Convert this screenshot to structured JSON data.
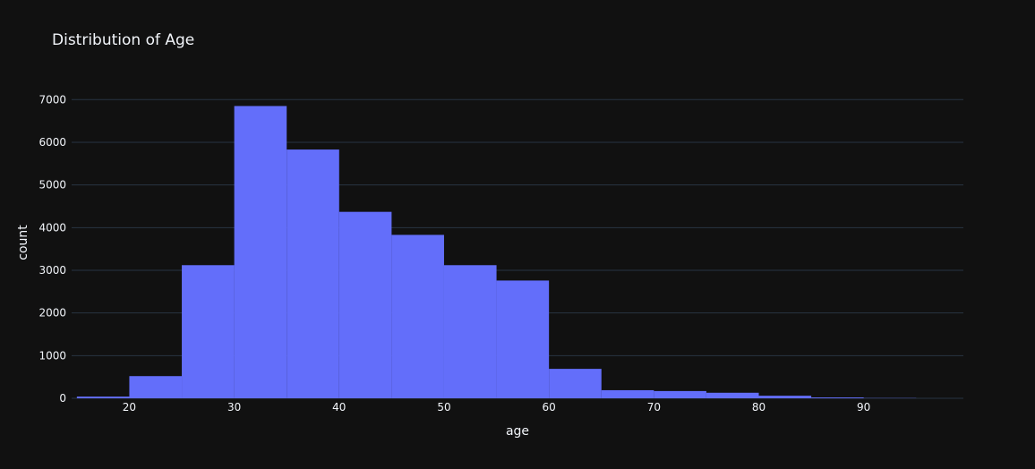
{
  "chart_data": {
    "type": "bar",
    "title": "Distribution of Age",
    "xlabel": "age",
    "ylabel": "count",
    "bin_width": 5,
    "bins": [
      {
        "start": 15,
        "end": 20,
        "count": 40
      },
      {
        "start": 20,
        "end": 25,
        "count": 520
      },
      {
        "start": 25,
        "end": 30,
        "count": 3120
      },
      {
        "start": 30,
        "end": 35,
        "count": 6850
      },
      {
        "start": 35,
        "end": 40,
        "count": 5830
      },
      {
        "start": 40,
        "end": 45,
        "count": 4370
      },
      {
        "start": 45,
        "end": 50,
        "count": 3830
      },
      {
        "start": 50,
        "end": 55,
        "count": 3120
      },
      {
        "start": 55,
        "end": 60,
        "count": 2760
      },
      {
        "start": 60,
        "end": 65,
        "count": 690
      },
      {
        "start": 65,
        "end": 70,
        "count": 190
      },
      {
        "start": 70,
        "end": 75,
        "count": 170
      },
      {
        "start": 75,
        "end": 80,
        "count": 130
      },
      {
        "start": 80,
        "end": 85,
        "count": 60
      },
      {
        "start": 85,
        "end": 90,
        "count": 20
      },
      {
        "start": 90,
        "end": 95,
        "count": 5
      }
    ],
    "xlim": [
      14.5,
      99.5
    ],
    "ylim": [
      0,
      7300
    ],
    "x_ticks": [
      20,
      30,
      40,
      50,
      60,
      70,
      80,
      90
    ],
    "y_ticks": [
      0,
      1000,
      2000,
      3000,
      4000,
      5000,
      6000,
      7000
    ],
    "grid": true,
    "colors": {
      "bar": "#636efa",
      "background": "#111111",
      "grid": "#283442",
      "text": "#f2f5fa"
    }
  }
}
